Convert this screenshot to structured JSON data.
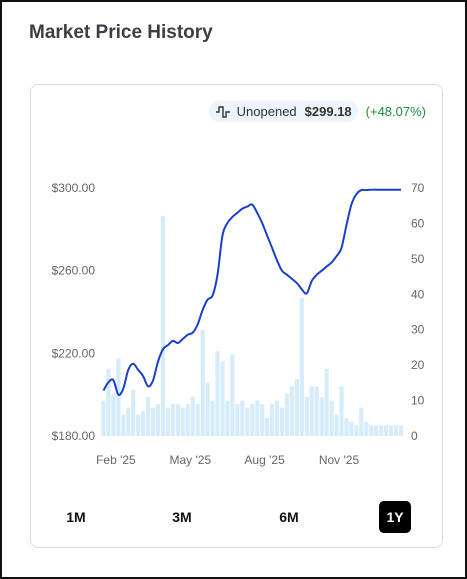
{
  "header": {
    "title": "Market Price History"
  },
  "legend": {
    "icon": "price-line-icon",
    "series": "Unopened",
    "price": "$299.18",
    "change": "(+48.07%)",
    "change_color": "#1e8a3a"
  },
  "ranges": [
    {
      "label": "1M",
      "active": false
    },
    {
      "label": "3M",
      "active": false
    },
    {
      "label": "6M",
      "active": false
    },
    {
      "label": "1Y",
      "active": true
    }
  ],
  "chart_data": {
    "type": "line",
    "line_color": "#1a3fcc",
    "bar_color": "#d6ecfb",
    "x_ticks": [
      "Feb '25",
      "May '25",
      "Aug '25",
      "Nov '25"
    ],
    "x_tick_positions": [
      0.5,
      3.5,
      6.5,
      9.5
    ],
    "x_range": [
      -0.1,
      12
    ],
    "y_left": {
      "ticks": [
        "$180.00",
        "$220.00",
        "$260.00",
        "$300.00"
      ],
      "tick_values": [
        180,
        220,
        260,
        300
      ],
      "range": [
        180,
        300
      ]
    },
    "y_right": {
      "ticks": [
        "0",
        "10",
        "20",
        "30",
        "40",
        "50",
        "60",
        "70"
      ],
      "tick_values": [
        0,
        10,
        20,
        30,
        40,
        50,
        60,
        70
      ],
      "range": [
        0,
        70
      ]
    },
    "grid": false,
    "series": [
      {
        "kind": "line",
        "axis": "left",
        "x": [
          0,
          0.2,
          0.4,
          0.6,
          0.8,
          1.0,
          1.2,
          1.4,
          1.6,
          1.8,
          2.0,
          2.2,
          2.4,
          2.6,
          2.8,
          3.0,
          3.2,
          3.4,
          3.6,
          3.8,
          4.0,
          4.2,
          4.4,
          4.6,
          4.8,
          5.0,
          5.2,
          5.4,
          5.6,
          5.8,
          6.0,
          6.2,
          6.4,
          6.6,
          6.8,
          7.0,
          7.2,
          7.4,
          7.6,
          7.8,
          8.0,
          8.2,
          8.4,
          8.6,
          8.8,
          9.0,
          9.2,
          9.4,
          9.6,
          9.8,
          10.0,
          10.2,
          10.4,
          10.6,
          10.8,
          11.0,
          11.2,
          11.4,
          11.6,
          11.8,
          12.0
        ],
        "values": [
          202,
          206,
          207,
          200,
          203,
          212,
          215,
          212,
          209,
          204,
          207,
          216,
          222,
          224,
          226,
          225,
          227,
          229,
          230,
          234,
          241,
          246,
          248,
          258,
          277,
          283,
          286,
          288,
          290,
          291,
          292,
          288,
          283,
          277,
          271,
          265,
          260,
          258,
          256,
          254,
          251,
          249,
          255,
          258,
          260,
          262,
          264,
          267,
          271,
          282,
          292,
          297,
          299,
          299,
          299.2,
          299.2,
          299.2,
          299.2,
          299.2,
          299.2,
          299.2
        ]
      },
      {
        "kind": "bar",
        "axis": "right",
        "x": [
          0,
          0.2,
          0.4,
          0.6,
          0.8,
          1.0,
          1.2,
          1.4,
          1.6,
          1.8,
          2.0,
          2.2,
          2.4,
          2.6,
          2.8,
          3.0,
          3.2,
          3.4,
          3.6,
          3.8,
          4.0,
          4.2,
          4.4,
          4.6,
          4.8,
          5.0,
          5.2,
          5.4,
          5.6,
          5.8,
          6.0,
          6.2,
          6.4,
          6.6,
          6.8,
          7.0,
          7.2,
          7.4,
          7.6,
          7.8,
          8.0,
          8.2,
          8.4,
          8.6,
          8.8,
          9.0,
          9.2,
          9.4,
          9.6,
          9.8,
          10.0,
          10.2,
          10.4,
          10.6,
          10.8,
          11.0,
          11.2,
          11.4,
          11.6,
          11.8,
          12.0
        ],
        "values": [
          10,
          19,
          12,
          22,
          6,
          8,
          13,
          6,
          7,
          11,
          8,
          9,
          62,
          8,
          9,
          9,
          8,
          9,
          11,
          9,
          30,
          15,
          10,
          24,
          21,
          10,
          23,
          9,
          10,
          8,
          9,
          10,
          9,
          5,
          9,
          10,
          8,
          12,
          14,
          16,
          39,
          11,
          14,
          14,
          11,
          19,
          10,
          6,
          14,
          5,
          4,
          3,
          8,
          4,
          3,
          3,
          3,
          3,
          3,
          3,
          3
        ]
      }
    ]
  }
}
